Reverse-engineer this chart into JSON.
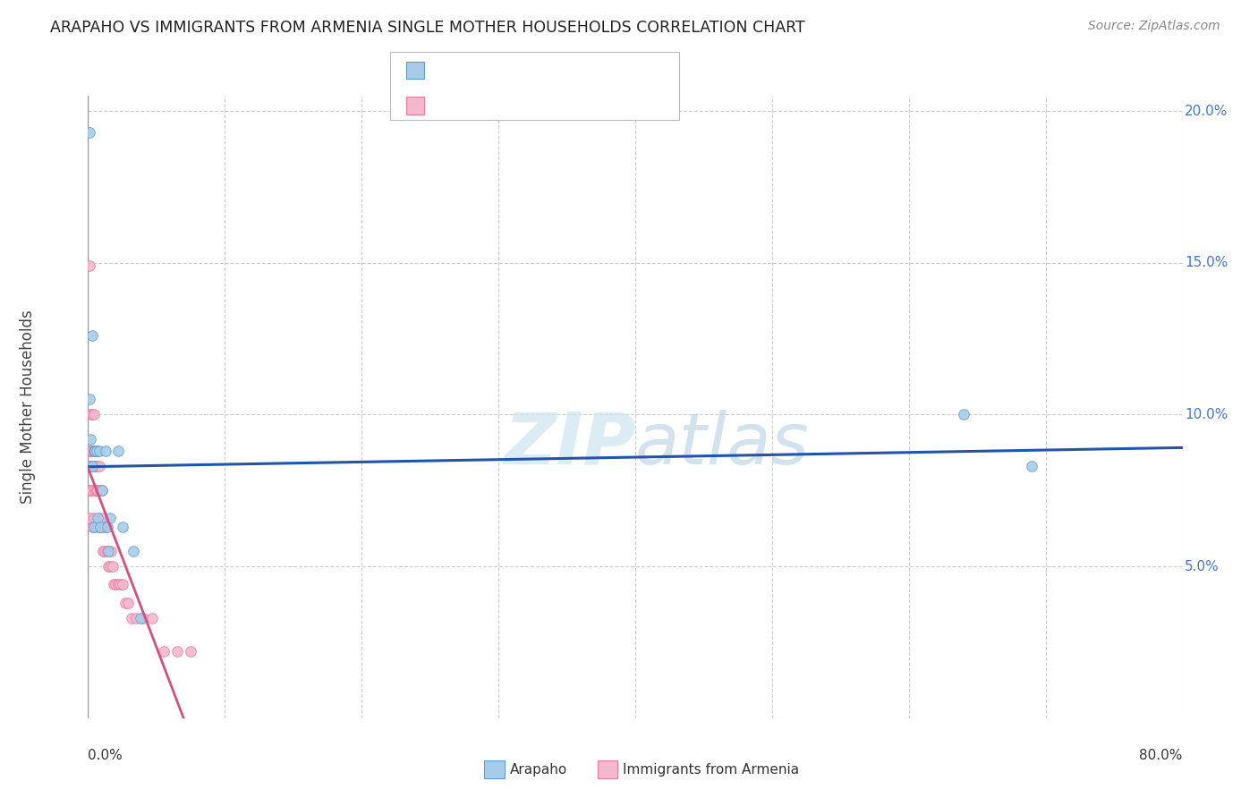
{
  "title": "ARAPAHO VS IMMIGRANTS FROM ARMENIA SINGLE MOTHER HOUSEHOLDS CORRELATION CHART",
  "source": "Source: ZipAtlas.com",
  "ylabel": "Single Mother Households",
  "xlim": [
    0,
    0.8
  ],
  "ylim": [
    0,
    0.205
  ],
  "yticks": [
    0.0,
    0.05,
    0.1,
    0.15,
    0.2
  ],
  "ytick_labels": [
    "",
    "5.0%",
    "10.0%",
    "15.0%",
    "20.0%"
  ],
  "xtick_left": "0.0%",
  "xtick_right": "80.0%",
  "arapaho_color": "#a8cce8",
  "arapaho_edge_color": "#5a9fd4",
  "armenia_color": "#f4b8cc",
  "armenia_edge_color": "#e87a9f",
  "arapaho_line_color": "#2255aa",
  "armenia_line_color": "#d45080",
  "ytick_color": "#4477cc",
  "watermark_color": "#cce8f4",
  "bg_color": "#ffffff",
  "grid_color": "#cccccc",
  "arapaho_x": [
    0.001,
    0.001,
    0.002,
    0.003,
    0.003,
    0.004,
    0.004,
    0.005,
    0.005,
    0.006,
    0.007,
    0.008,
    0.009,
    0.01,
    0.013,
    0.014,
    0.015,
    0.016,
    0.022,
    0.025,
    0.033,
    0.038,
    0.64,
    0.69
  ],
  "arapaho_y": [
    0.193,
    0.105,
    0.092,
    0.083,
    0.126,
    0.063,
    0.088,
    0.088,
    0.088,
    0.088,
    0.066,
    0.088,
    0.063,
    0.075,
    0.088,
    0.063,
    0.055,
    0.066,
    0.088,
    0.063,
    0.055,
    0.033,
    0.1,
    0.083
  ],
  "armenia_x": [
    0.001,
    0.001,
    0.001,
    0.001,
    0.001,
    0.002,
    0.002,
    0.002,
    0.002,
    0.003,
    0.003,
    0.003,
    0.003,
    0.003,
    0.004,
    0.004,
    0.004,
    0.004,
    0.005,
    0.005,
    0.005,
    0.005,
    0.006,
    0.006,
    0.006,
    0.007,
    0.007,
    0.007,
    0.007,
    0.008,
    0.008,
    0.009,
    0.009,
    0.01,
    0.01,
    0.011,
    0.011,
    0.012,
    0.012,
    0.013,
    0.014,
    0.015,
    0.016,
    0.017,
    0.018,
    0.019,
    0.02,
    0.022,
    0.023,
    0.025,
    0.027,
    0.029,
    0.032,
    0.035,
    0.04,
    0.047,
    0.055,
    0.065,
    0.075
  ],
  "armenia_y": [
    0.149,
    0.088,
    0.083,
    0.075,
    0.066,
    0.1,
    0.088,
    0.083,
    0.075,
    0.1,
    0.088,
    0.083,
    0.075,
    0.063,
    0.1,
    0.088,
    0.083,
    0.066,
    0.088,
    0.083,
    0.075,
    0.063,
    0.088,
    0.083,
    0.075,
    0.088,
    0.083,
    0.075,
    0.063,
    0.083,
    0.066,
    0.075,
    0.063,
    0.075,
    0.063,
    0.066,
    0.055,
    0.063,
    0.055,
    0.063,
    0.055,
    0.05,
    0.05,
    0.055,
    0.05,
    0.044,
    0.044,
    0.044,
    0.044,
    0.044,
    0.038,
    0.038,
    0.033,
    0.033,
    0.033,
    0.033,
    0.022,
    0.022,
    0.022
  ]
}
